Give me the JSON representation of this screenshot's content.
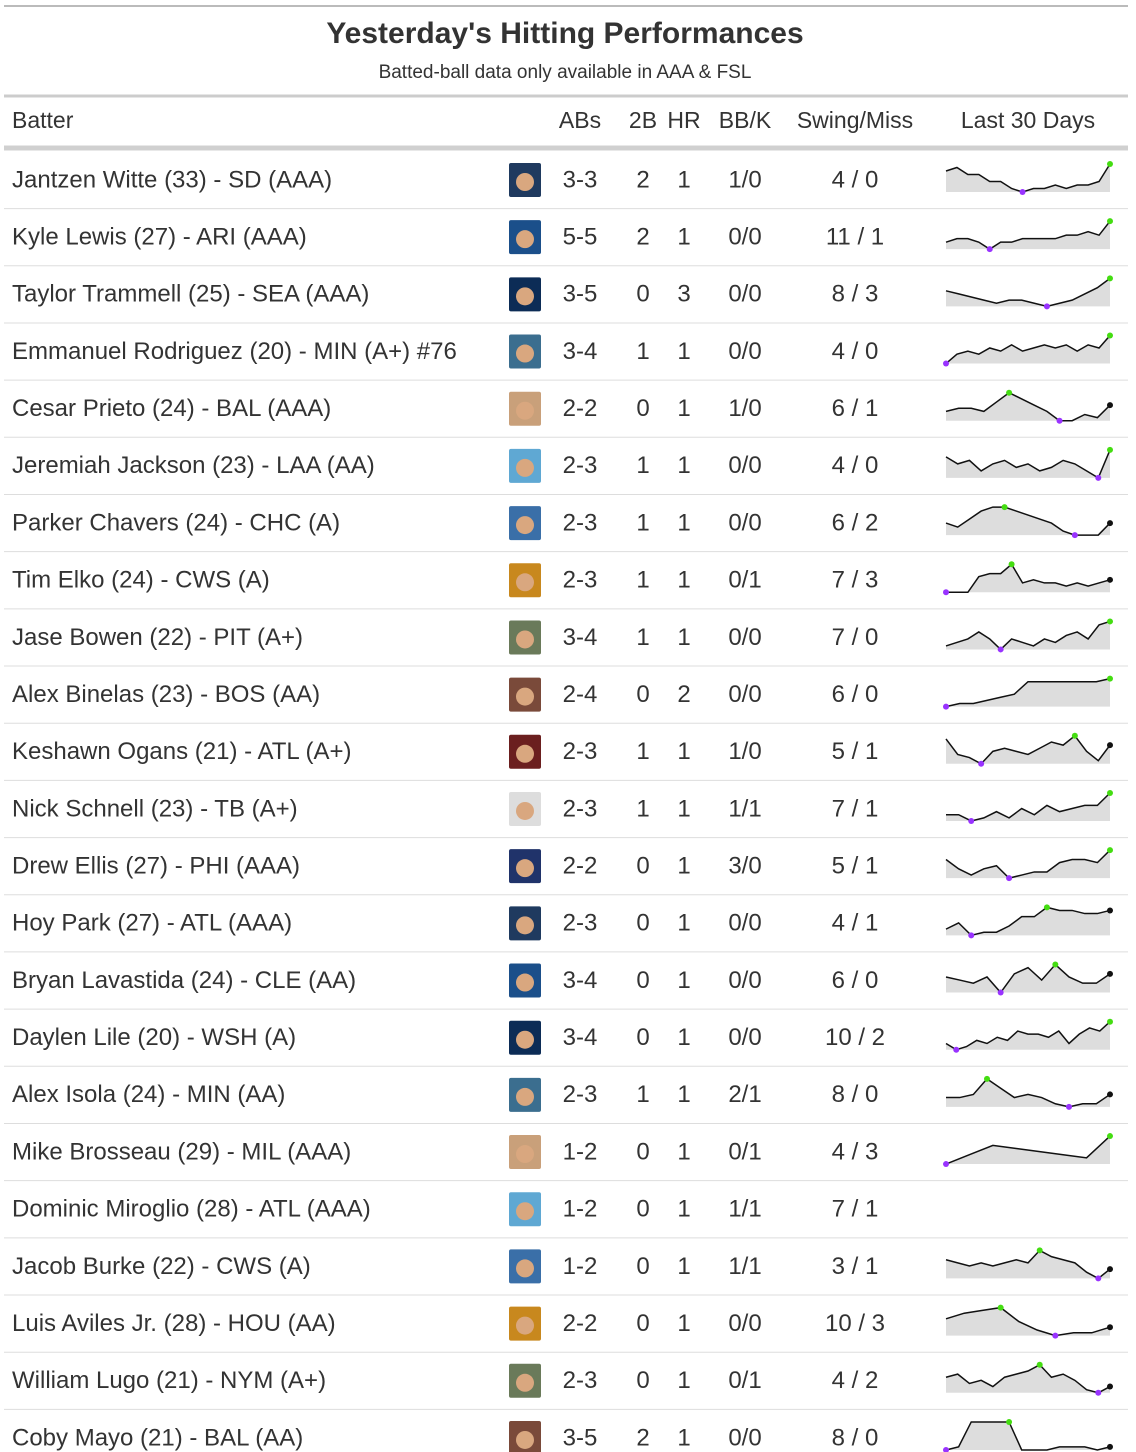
{
  "header": {
    "title": "Yesterday's Hitting Performances",
    "subtitle": "Batted-ball data only available in AAA & FSL"
  },
  "table": {
    "columns": [
      "Batter",
      "ABs",
      "2B",
      "HR",
      "BB/K",
      "Swing/Miss",
      "Last 30 Days"
    ],
    "rows": [
      [
        "Jantzen Witte (33) - SD (AAA)",
        "3-3",
        2,
        1,
        "1/0",
        "4 / 0"
      ],
      [
        "Kyle Lewis (27) - ARI (AAA)",
        "5-5",
        2,
        1,
        "0/0",
        "11 / 1"
      ],
      [
        "Taylor Trammell (25) - SEA (AAA)",
        "3-5",
        0,
        3,
        "0/0",
        "8 / 3"
      ],
      [
        "Emmanuel Rodriguez (20) - MIN (A+) #76",
        "3-4",
        1,
        1,
        "0/0",
        "4 / 0"
      ],
      [
        "Cesar Prieto (24) - BAL (AAA)",
        "2-2",
        0,
        1,
        "1/0",
        "6 / 1"
      ],
      [
        "Jeremiah Jackson (23) - LAA (AA)",
        "2-3",
        1,
        1,
        "0/0",
        "4 / 0"
      ],
      [
        "Parker Chavers (24) - CHC (A)",
        "2-3",
        1,
        1,
        "0/0",
        "6 / 2"
      ],
      [
        "Tim Elko (24) - CWS (A)",
        "2-3",
        1,
        1,
        "0/1",
        "7 / 3"
      ],
      [
        "Jase Bowen (22) - PIT (A+)",
        "3-4",
        1,
        1,
        "0/0",
        "7 / 0"
      ],
      [
        "Alex Binelas (23) - BOS (AA)",
        "2-4",
        0,
        2,
        "0/0",
        "6 / 0"
      ],
      [
        "Keshawn Ogans (21) - ATL (A+)",
        "2-3",
        1,
        1,
        "1/0",
        "5 / 1"
      ],
      [
        "Nick Schnell (23) - TB (A+)",
        "2-3",
        1,
        1,
        "1/1",
        "7 / 1"
      ],
      [
        "Drew Ellis (27) - PHI (AAA)",
        "2-2",
        0,
        1,
        "3/0",
        "5 / 1"
      ],
      [
        "Hoy Park (27) - ATL (AAA)",
        "2-3",
        0,
        1,
        "0/0",
        "4 / 1"
      ],
      [
        "Bryan Lavastida (24) - CLE (AA)",
        "3-4",
        0,
        1,
        "0/0",
        "6 / 0"
      ],
      [
        "Daylen Lile (20) - WSH (A)",
        "3-4",
        0,
        1,
        "0/0",
        "10 / 2"
      ],
      [
        "Alex Isola (24) - MIN (AA)",
        "2-3",
        1,
        1,
        "2/1",
        "8 / 0"
      ],
      [
        "Mike Brosseau (29) - MIL (AAA)",
        "1-2",
        0,
        1,
        "0/1",
        "4 / 3"
      ],
      [
        "Dominic Miroglio (28) - ATL (AAA)",
        "1-2",
        0,
        1,
        "1/1",
        "7 / 1"
      ],
      [
        "Jacob Burke (22) - CWS (A)",
        "1-2",
        0,
        1,
        "1/1",
        "3 / 1"
      ],
      [
        "Luis Aviles Jr. (28) - HOU (AA)",
        "2-2",
        0,
        1,
        "0/0",
        "10 / 3"
      ],
      [
        "William Lugo (21) - NYM (A+)",
        "2-3",
        0,
        1,
        "0/1",
        "4 / 2"
      ],
      [
        "Coby Mayo (21) - BAL (AA)",
        "3-5",
        2,
        1,
        "0/0",
        "8 / 0"
      ]
    ],
    "trends": [
      [
        7,
        8,
        6,
        6,
        4,
        4,
        2,
        1,
        2,
        2,
        3,
        2,
        3,
        3,
        4,
        9
      ],
      [
        3,
        4,
        4,
        3,
        1,
        3,
        3,
        4,
        4,
        4,
        4,
        5,
        5,
        6,
        5,
        9
      ],
      [
        5,
        4,
        3,
        2,
        1,
        2,
        2,
        1,
        0,
        1,
        2,
        4,
        6,
        9
      ],
      [
        0,
        3,
        4,
        3,
        5,
        4,
        6,
        4,
        5,
        6,
        5,
        6,
        4,
        6,
        5,
        9
      ],
      [
        3,
        4,
        4,
        3,
        6,
        9,
        7,
        5,
        3,
        0,
        0,
        2,
        1,
        5
      ],
      [
        7,
        5,
        6,
        3,
        5,
        6,
        4,
        5,
        3,
        4,
        6,
        5,
        3,
        1,
        9
      ],
      [
        4,
        3,
        5,
        7,
        8,
        8,
        7,
        6,
        5,
        4,
        2,
        1,
        1,
        1,
        4
      ],
      [
        0,
        0,
        0,
        5,
        6,
        6,
        9,
        3,
        4,
        3,
        3,
        2,
        3,
        2,
        3,
        4
      ],
      [
        2,
        3,
        4,
        6,
        4,
        1,
        4,
        3,
        2,
        4,
        3,
        5,
        6,
        4,
        8,
        9
      ],
      [
        0,
        1,
        1,
        2,
        3,
        4,
        8,
        8,
        8,
        8,
        8,
        8,
        9
      ],
      [
        8,
        3,
        2,
        0,
        4,
        5,
        4,
        3,
        5,
        7,
        6,
        9,
        4,
        1,
        6
      ],
      [
        2,
        2,
        0,
        1,
        3,
        1,
        4,
        2,
        5,
        3,
        4,
        5,
        5,
        9
      ],
      [
        6,
        3,
        1,
        3,
        4,
        0,
        1,
        2,
        2,
        5,
        6,
        6,
        5,
        9
      ],
      [
        2,
        4,
        0,
        1,
        1,
        3,
        6,
        6,
        9,
        8,
        8,
        7,
        7,
        8
      ],
      [
        5,
        4,
        3,
        5,
        0,
        6,
        8,
        4,
        9,
        5,
        3,
        3,
        6
      ],
      [
        2,
        0,
        1,
        3,
        2,
        4,
        3,
        6,
        5,
        5,
        4,
        6,
        2,
        5,
        7,
        6,
        9
      ],
      [
        3,
        3,
        4,
        9,
        6,
        3,
        4,
        3,
        1,
        0,
        1,
        1,
        4
      ],
      [
        0,
        3,
        6,
        5,
        4,
        3,
        2,
        9
      ],
      null,
      [
        6,
        5,
        4,
        5,
        4,
        5,
        6,
        5,
        9,
        7,
        6,
        5,
        2,
        0,
        3
      ],
      [
        6,
        8,
        9,
        10,
        5,
        2,
        0,
        1,
        1,
        3
      ],
      [
        5,
        6,
        3,
        4,
        2,
        5,
        6,
        7,
        9,
        5,
        6,
        4,
        1,
        0,
        2
      ],
      [
        0,
        1,
        9,
        9,
        9,
        9,
        0,
        0,
        0,
        1,
        1,
        1,
        0,
        1
      ]
    ]
  }
}
